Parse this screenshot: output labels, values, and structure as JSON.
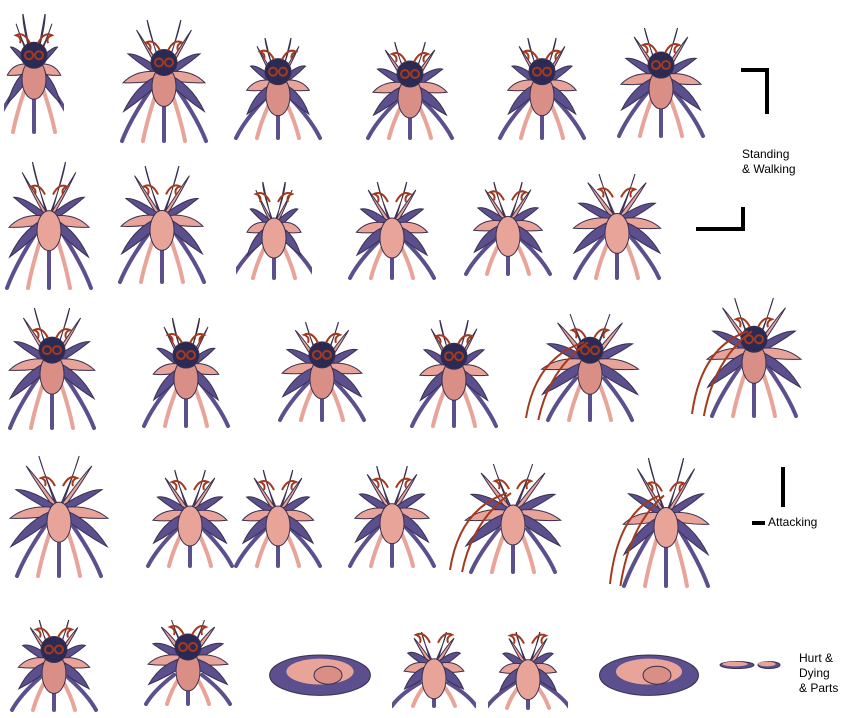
{
  "sheet": {
    "background": "#ffffff",
    "sprite_palette": {
      "wing_purple": "#5b4f8e",
      "wing_pink": "#e9a49a",
      "body_pink": "#d98f86",
      "hair_navy": "#2b2a55",
      "antenna_red": "#a33a1e",
      "outline": "#3a2f4f"
    },
    "sections": [
      {
        "label": "Standing\n& Walking",
        "rows": 2,
        "frames_per_row": [
          6,
          6
        ]
      },
      {
        "label": "Attacking",
        "rows": 2,
        "frames_per_row": [
          6,
          6
        ]
      },
      {
        "label": "Hurt &\nDying\n& Parts",
        "rows": 1,
        "frames_per_row": [
          8
        ]
      }
    ]
  }
}
